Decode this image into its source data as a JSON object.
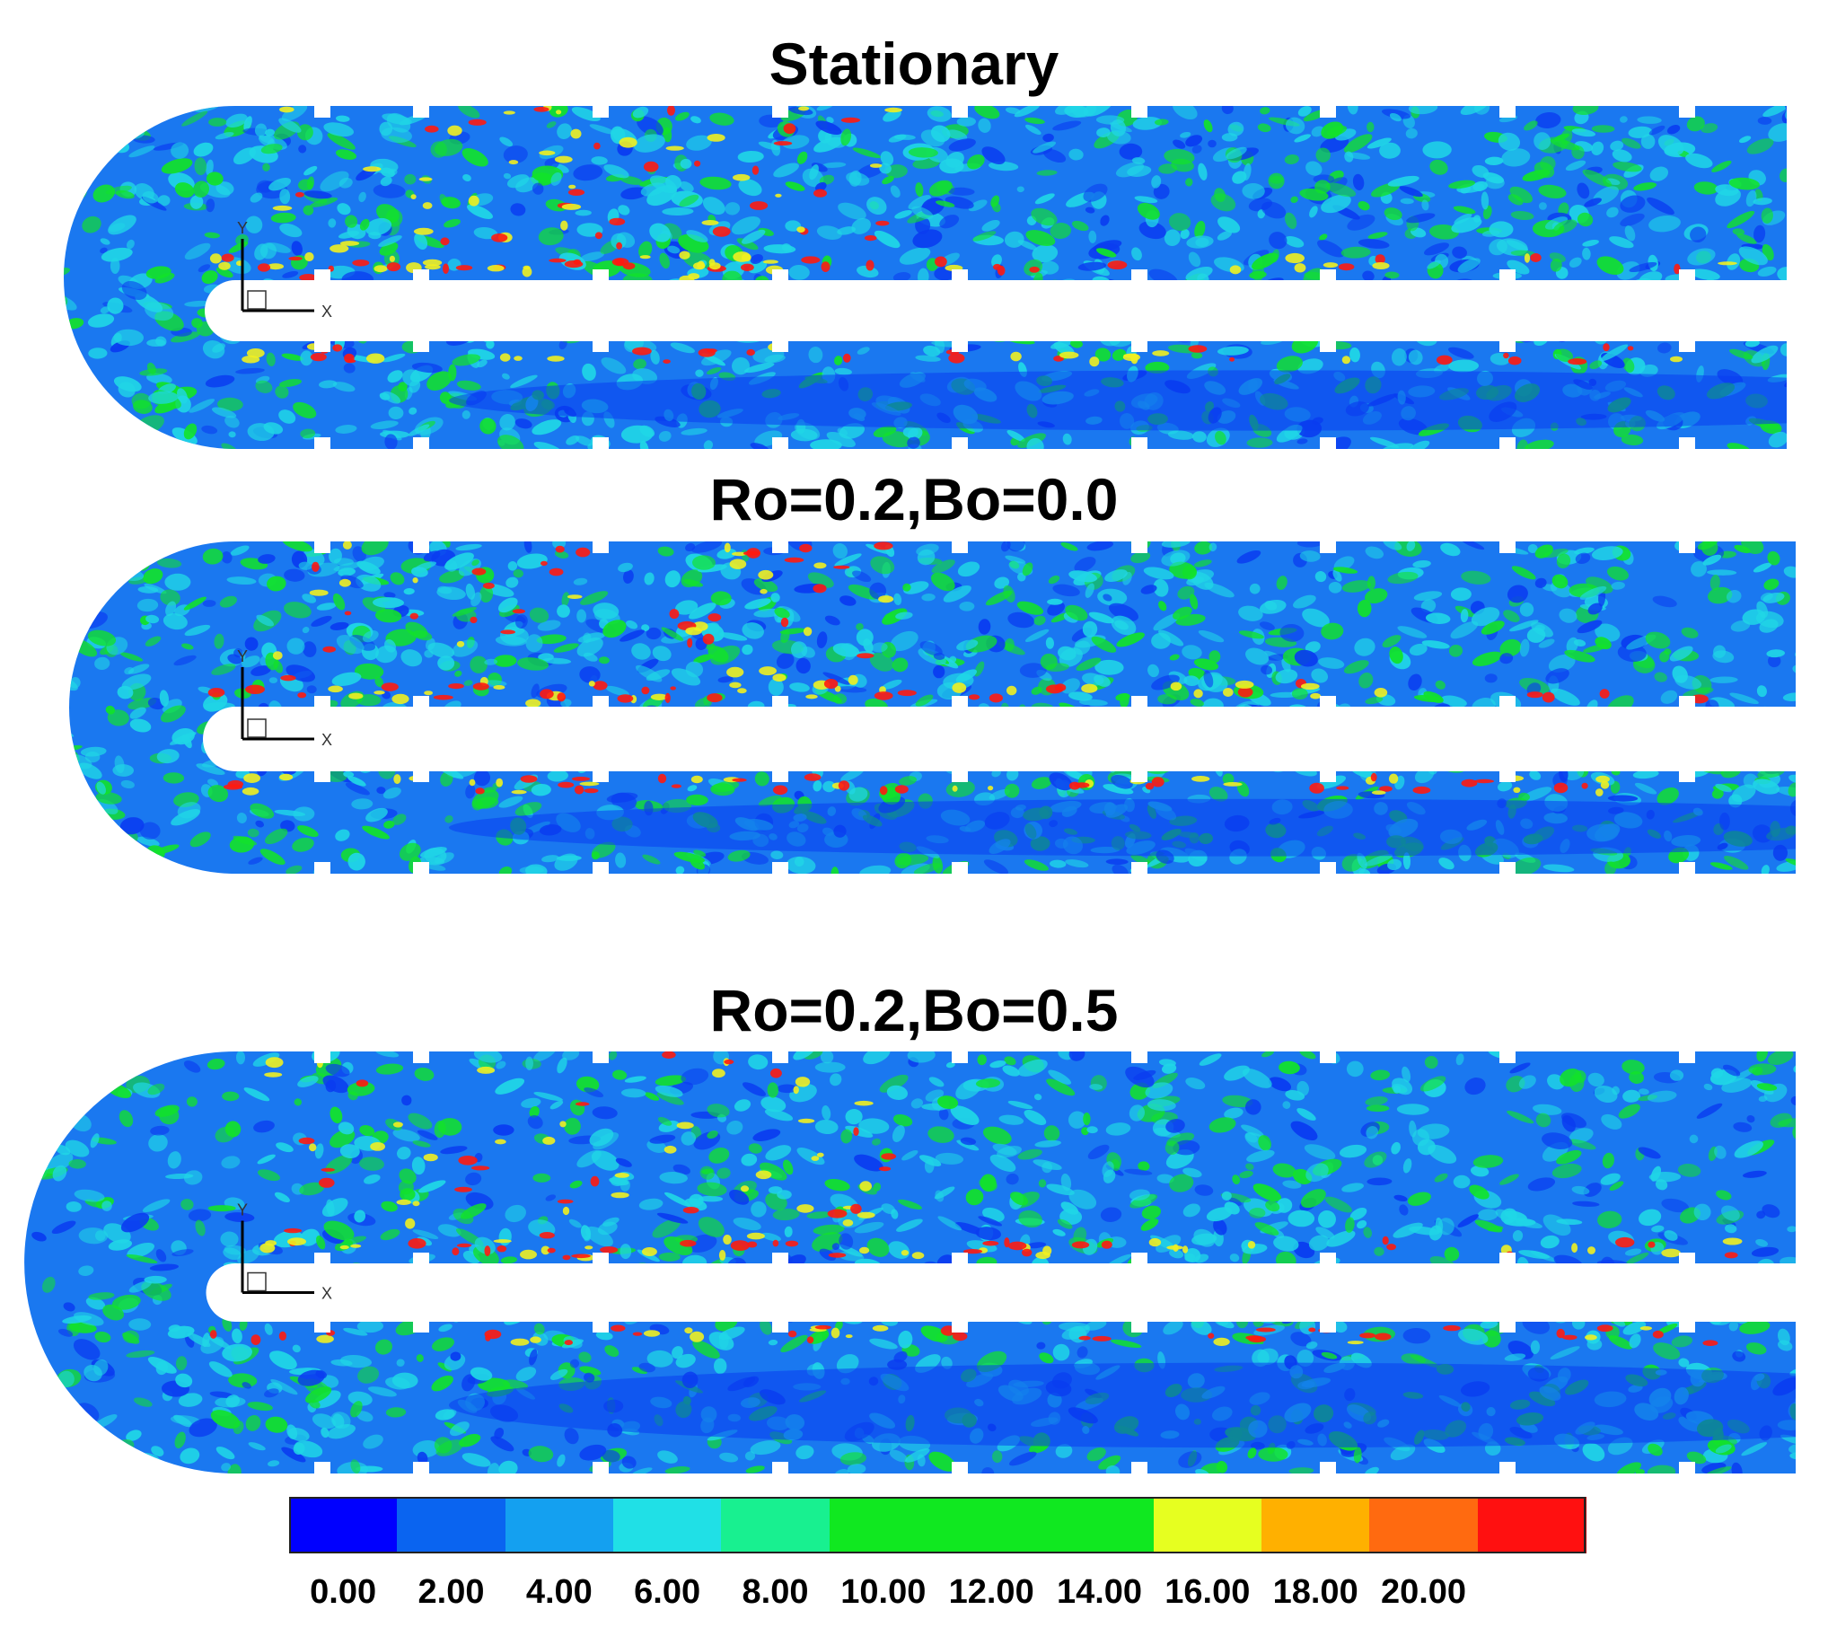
{
  "panels": [
    {
      "title": "Stationary"
    },
    {
      "title": "Ro=0.2,Bo=0.0"
    },
    {
      "title": "Ro=0.2,Bo=0.5"
    }
  ],
  "axes": {
    "x_label": "X",
    "y_label": "Y"
  },
  "legend": {
    "labels": [
      "0.00",
      "2.00",
      "4.00",
      "6.00",
      "8.00",
      "10.00",
      "12.00",
      "14.00",
      "16.00",
      "18.00",
      "20.00"
    ],
    "colors": [
      "#0000ff",
      "#0a64f0",
      "#14a0f0",
      "#20e0e6",
      "#18f090",
      "#10e820",
      "#10e820",
      "#10e820",
      "#e6ff20",
      "#ffb000",
      "#ff6a10",
      "#ff1010"
    ]
  },
  "colormap": {
    "base_blue": "#1a78f0",
    "deep_blue": "#0a3cf0",
    "cyan": "#20d6e6",
    "green": "#12e22a",
    "yellow": "#f0f020",
    "red": "#ff1a10"
  }
}
